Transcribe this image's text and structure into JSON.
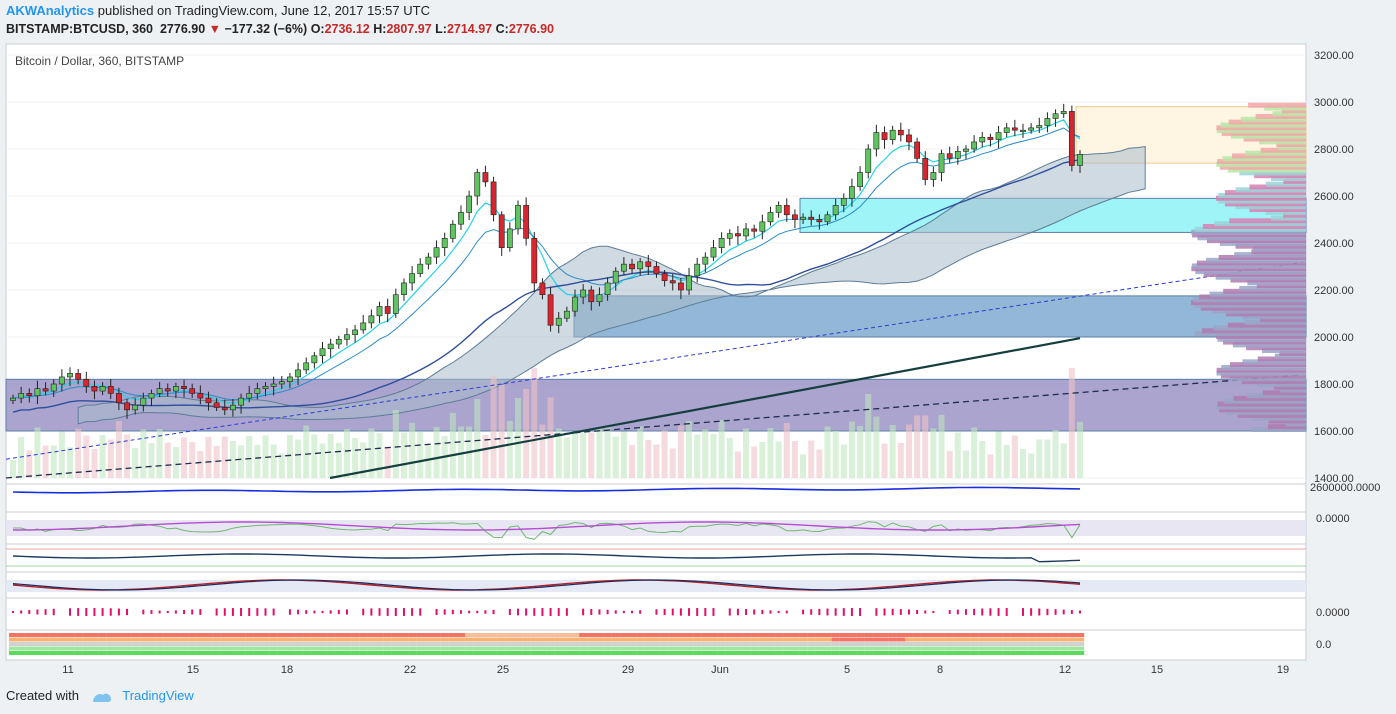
{
  "header": {
    "author": "AKWAnalytics",
    "published": "published on TradingView.com, June 12, 2017 15:57 UTC",
    "symbol": "BITSTAMP:BTCUSD, 360",
    "last": "2776.90",
    "change": "−177.32 (−6%)",
    "o_label": "O:",
    "o": "2736.12",
    "h_label": "H:",
    "h": "2807.97",
    "l_label": "L:",
    "l": "2714.97",
    "c_label": "C:",
    "c": "2776.90"
  },
  "footer": {
    "created": "Created with",
    "brand": "TradingView"
  },
  "colors": {
    "up": "#5fc35f",
    "down": "#d8262e",
    "cyan_zone": "#7ff0f5",
    "blue_zone": "#6f9fc8",
    "purple_zone": "#8f86bf",
    "orange_zone": "#fff4e0"
  },
  "chart_data": {
    "type": "candlestick",
    "title": "Bitcoin / Dollar, 360, BITSTAMP",
    "y_ticks": [
      "3200.00",
      "3000.00",
      "2800.00",
      "2600.00",
      "2400.00",
      "2200.00",
      "2000.00",
      "1800.00",
      "1600.00",
      "1400.00"
    ],
    "x_ticks": [
      "11",
      "15",
      "18",
      "22",
      "25",
      "29",
      "Jun",
      "5",
      "8",
      "12",
      "15",
      "19"
    ],
    "ylim": [
      1400,
      3200
    ],
    "zones": [
      {
        "name": "resistance",
        "from": 2740,
        "to": 2980
      },
      {
        "name": "cyan",
        "from": 2445,
        "to": 2590
      },
      {
        "name": "blue",
        "from": 2000,
        "to": 2175
      },
      {
        "name": "purple",
        "from": 1600,
        "to": 1820
      }
    ],
    "closes": [
      1740,
      1760,
      1750,
      1780,
      1770,
      1800,
      1830,
      1845,
      1820,
      1790,
      1770,
      1790,
      1760,
      1720,
      1690,
      1710,
      1740,
      1760,
      1780,
      1770,
      1790,
      1780,
      1760,
      1740,
      1720,
      1700,
      1690,
      1710,
      1740,
      1760,
      1780,
      1790,
      1800,
      1810,
      1830,
      1860,
      1890,
      1920,
      1950,
      1970,
      1990,
      2010,
      2030,
      2060,
      2090,
      2130,
      2100,
      2180,
      2230,
      2270,
      2310,
      2340,
      2380,
      2420,
      2480,
      2530,
      2600,
      2700,
      2660,
      2520,
      2380,
      2460,
      2560,
      2420,
      2230,
      2180,
      2050,
      2080,
      2110,
      2170,
      2200,
      2150,
      2180,
      2230,
      2280,
      2310,
      2290,
      2320,
      2300,
      2270,
      2240,
      2230,
      2200,
      2260,
      2310,
      2340,
      2380,
      2420,
      2440,
      2430,
      2460,
      2450,
      2490,
      2530,
      2560,
      2520,
      2500,
      2510,
      2500,
      2490,
      2520,
      2560,
      2590,
      2640,
      2700,
      2800,
      2870,
      2840,
      2880,
      2860,
      2830,
      2760,
      2670,
      2700,
      2780,
      2760,
      2790,
      2800,
      2830,
      2850,
      2840,
      2870,
      2890,
      2880,
      2880,
      2890,
      2900,
      2930,
      2950,
      2960,
      2730,
      2777
    ],
    "volume_label": "2600000.0000",
    "osc1_label": "0.0000",
    "osc2_label": "0.0000",
    "osc3_label": "0.0"
  }
}
